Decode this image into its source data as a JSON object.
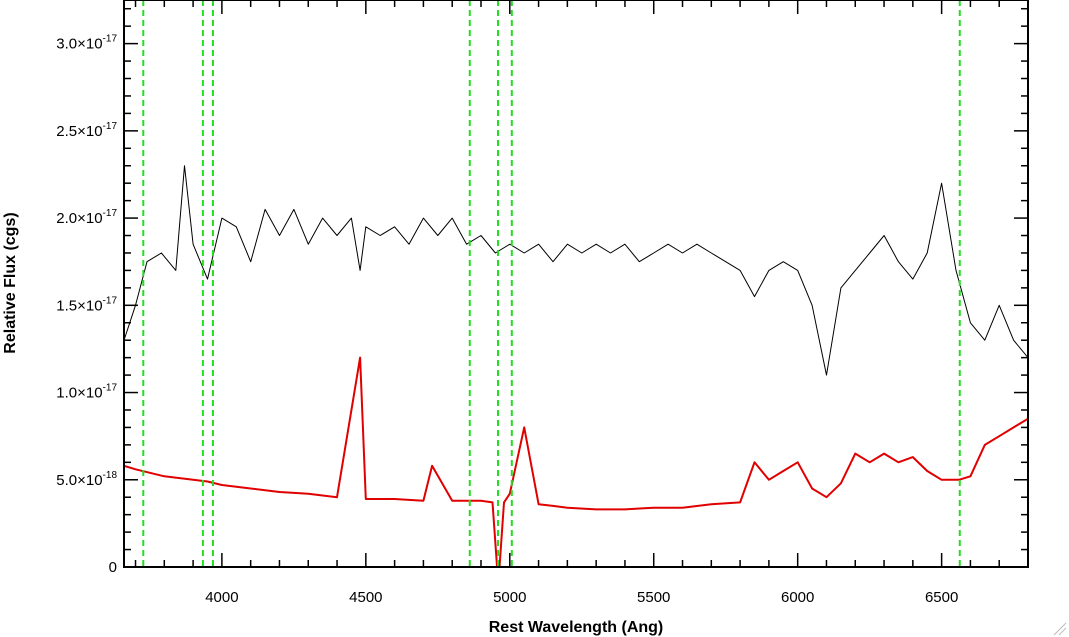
{
  "chart_data": {
    "type": "line",
    "title": "",
    "xlabel": "Rest Wavelength (Ang)",
    "ylabel": "Relative Flux (cgs)",
    "xlim": [
      3660,
      6800
    ],
    "ylim": [
      0,
      3.25e-17
    ],
    "x_ticks": [
      {
        "value": 4000,
        "label": "4000"
      },
      {
        "value": 4500,
        "label": "4500"
      },
      {
        "value": 5000,
        "label": "5000"
      },
      {
        "value": 5500,
        "label": "5500"
      },
      {
        "value": 6000,
        "label": "6000"
      },
      {
        "value": 6500,
        "label": "6500"
      }
    ],
    "y_ticks": [
      {
        "value": 0,
        "mantissa": "0",
        "exponent": ""
      },
      {
        "value": 5e-18,
        "mantissa": "5.0×10",
        "exponent": "-18"
      },
      {
        "value": 1e-17,
        "mantissa": "1.0×10",
        "exponent": "-17"
      },
      {
        "value": 1.5e-17,
        "mantissa": "1.5×10",
        "exponent": "-17"
      },
      {
        "value": 2e-17,
        "mantissa": "2.0×10",
        "exponent": "-17"
      },
      {
        "value": 2.5e-17,
        "mantissa": "2.5×10",
        "exponent": "-17"
      },
      {
        "value": 3e-17,
        "mantissa": "3.0×10",
        "exponent": "-17"
      }
    ],
    "grid": false,
    "legend": "none",
    "reference_lines": {
      "orientation": "vertical",
      "style": "dashed",
      "color": "#22dd22",
      "x": [
        3727,
        3934,
        3969,
        4861,
        4959,
        5007,
        6563
      ]
    },
    "series": [
      {
        "color": "#000000",
        "x": [
          3660,
          3700,
          3740,
          3790,
          3840,
          3870,
          3900,
          3950,
          4000,
          4050,
          4100,
          4150,
          4200,
          4250,
          4300,
          4350,
          4400,
          4450,
          4480,
          4500,
          4550,
          4600,
          4650,
          4700,
          4750,
          4800,
          4850,
          4900,
          4950,
          5000,
          5050,
          5100,
          5150,
          5200,
          5250,
          5300,
          5350,
          5400,
          5450,
          5500,
          5550,
          5600,
          5650,
          5700,
          5750,
          5800,
          5850,
          5900,
          5950,
          6000,
          6050,
          6100,
          6150,
          6200,
          6250,
          6300,
          6350,
          6400,
          6450,
          6500,
          6550,
          6600,
          6650,
          6700,
          6750,
          6800
        ],
        "y": [
          1.3e-17,
          1.5e-17,
          1.75e-17,
          1.8e-17,
          1.7e-17,
          2.3e-17,
          1.85e-17,
          1.65e-17,
          2e-17,
          1.95e-17,
          1.75e-17,
          2.05e-17,
          1.9e-17,
          2.05e-17,
          1.85e-17,
          2e-17,
          1.9e-17,
          2e-17,
          1.7e-17,
          1.95e-17,
          1.9e-17,
          1.95e-17,
          1.85e-17,
          2e-17,
          1.9e-17,
          2e-17,
          1.85e-17,
          1.9e-17,
          1.8e-17,
          1.85e-17,
          1.8e-17,
          1.85e-17,
          1.75e-17,
          1.85e-17,
          1.8e-17,
          1.85e-17,
          1.8e-17,
          1.85e-17,
          1.75e-17,
          1.8e-17,
          1.85e-17,
          1.8e-17,
          1.85e-17,
          1.8e-17,
          1.75e-17,
          1.7e-17,
          1.55e-17,
          1.7e-17,
          1.75e-17,
          1.7e-17,
          1.5e-17,
          1.1e-17,
          1.6e-17,
          1.7e-17,
          1.8e-17,
          1.9e-17,
          1.75e-17,
          1.65e-17,
          1.8e-17,
          2.2e-17,
          1.7e-17,
          1.4e-17,
          1.3e-17,
          1.5e-17,
          1.3e-17,
          1.2e-17
        ]
      },
      {
        "color": "#e00000",
        "x": [
          3660,
          3700,
          3750,
          3800,
          3850,
          3900,
          3950,
          4000,
          4100,
          4200,
          4300,
          4400,
          4480,
          4500,
          4600,
          4700,
          4730,
          4800,
          4900,
          4940,
          4960,
          4980,
          5000,
          5050,
          5100,
          5150,
          5200,
          5300,
          5400,
          5500,
          5600,
          5700,
          5800,
          5850,
          5900,
          5950,
          6000,
          6050,
          6100,
          6150,
          6200,
          6250,
          6300,
          6350,
          6400,
          6450,
          6500,
          6560,
          6600,
          6650,
          6700,
          6750,
          6800
        ],
        "y": [
          5.8e-18,
          5.6e-18,
          5.4e-18,
          5.2e-18,
          5.1e-18,
          5e-18,
          4.9e-18,
          4.7e-18,
          4.5e-18,
          4.3e-18,
          4.2e-18,
          4e-18,
          1.2e-17,
          3.9e-18,
          3.9e-18,
          3.8e-18,
          5.8e-18,
          3.8e-18,
          3.8e-18,
          3.7e-18,
          -1e-18,
          3.7e-18,
          4.2e-18,
          8e-18,
          3.6e-18,
          3.5e-18,
          3.4e-18,
          3.3e-18,
          3.3e-18,
          3.4e-18,
          3.4e-18,
          3.6e-18,
          3.7e-18,
          6e-18,
          5e-18,
          5.5e-18,
          6e-18,
          4.5e-18,
          4e-18,
          4.8e-18,
          6.5e-18,
          6e-18,
          6.5e-18,
          6e-18,
          6.3e-18,
          5.5e-18,
          5e-18,
          5e-18,
          5.2e-18,
          7e-18,
          7.5e-18,
          8e-18,
          8.5e-18
        ]
      }
    ]
  }
}
